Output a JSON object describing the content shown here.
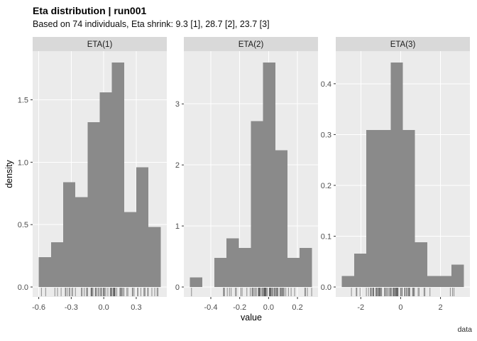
{
  "header": {
    "title": "Eta distribution | run001",
    "subtitle": "Based on 74 individuals, Eta shrink: 9.3 [1], 28.7 [2], 23.7 [3]"
  },
  "axes": {
    "x_label": "value",
    "y_label": "density"
  },
  "caption": "data",
  "colors": {
    "bar": "#8A8A8A",
    "panel_bg": "#EBEBEB",
    "strip_bg": "#D9D9D9",
    "grid": "#FFFFFF",
    "tick_text": "#4D4D4D",
    "tick_mark": "#333333",
    "strip_text": "#1A1A1A",
    "rug": "#3C3C3C"
  },
  "chart_data": {
    "type": "bar",
    "subtype": "faceted-histogram-with-rug",
    "title": "Eta distribution | run001",
    "subtitle": "Based on 74 individuals, Eta shrink: 9.3 [1], 28.7 [2], 23.7 [3]",
    "xlabel": "value",
    "ylabel": "density",
    "caption": "data",
    "n_individuals": 74,
    "legend": "none",
    "grid": "major-white-on-grey",
    "facets": [
      {
        "label": "ETA(1)",
        "bin_start": -0.6,
        "bin_width": 0.1126,
        "counts": [
          2,
          3,
          7,
          6,
          11,
          13,
          15,
          5,
          8,
          4
        ],
        "densities": [
          0.24,
          0.36,
          0.84,
          0.72,
          1.32,
          1.56,
          1.8,
          0.6,
          0.96,
          0.48
        ],
        "x_ticks": {
          "values": [
            -0.6,
            -0.3,
            0.0,
            0.3
          ],
          "labels": [
            "-0.6",
            "-0.3",
            "0.0",
            "0.3"
          ]
        },
        "y_ticks": {
          "values": [
            0.0,
            0.5,
            1.0,
            1.5
          ],
          "labels": [
            "0.0",
            "0.5",
            "1.0",
            "1.5"
          ]
        },
        "y_max": 1.8
      },
      {
        "label": "ETA(2)",
        "bin_start": -0.5446,
        "bin_width": 0.08446,
        "counts": [
          1,
          0,
          3,
          5,
          4,
          17,
          23,
          14,
          3,
          4
        ],
        "densities": [
          0.16,
          0,
          0.48,
          0.8,
          0.64,
          2.72,
          3.68,
          2.24,
          0.48,
          0.64
        ],
        "x_ticks": {
          "values": [
            -0.4,
            -0.2,
            0.0,
            0.2
          ],
          "labels": [
            "-0.4",
            "-0.2",
            "0.0",
            "0.2"
          ]
        },
        "y_ticks": {
          "values": [
            0,
            1,
            2,
            3
          ],
          "labels": [
            "0",
            "1",
            "2",
            "3"
          ]
        },
        "y_max": 3.68
      },
      {
        "label": "ETA(3)",
        "bin_start": -2.95,
        "bin_width": 0.612,
        "counts": [
          1,
          3,
          14,
          14,
          20,
          14,
          4,
          1,
          1,
          2
        ],
        "densities": [
          0.022,
          0.066,
          0.309,
          0.309,
          0.442,
          0.309,
          0.088,
          0.022,
          0.022,
          0.044
        ],
        "x_ticks": {
          "values": [
            -2,
            0,
            2
          ],
          "labels": [
            "-2",
            "0",
            "2"
          ]
        },
        "y_ticks": {
          "values": [
            0.0,
            0.1,
            0.2,
            0.3,
            0.4
          ],
          "labels": [
            "0.0",
            "0.1",
            "0.2",
            "0.3",
            "0.4"
          ]
        },
        "y_max": 0.442
      }
    ]
  }
}
